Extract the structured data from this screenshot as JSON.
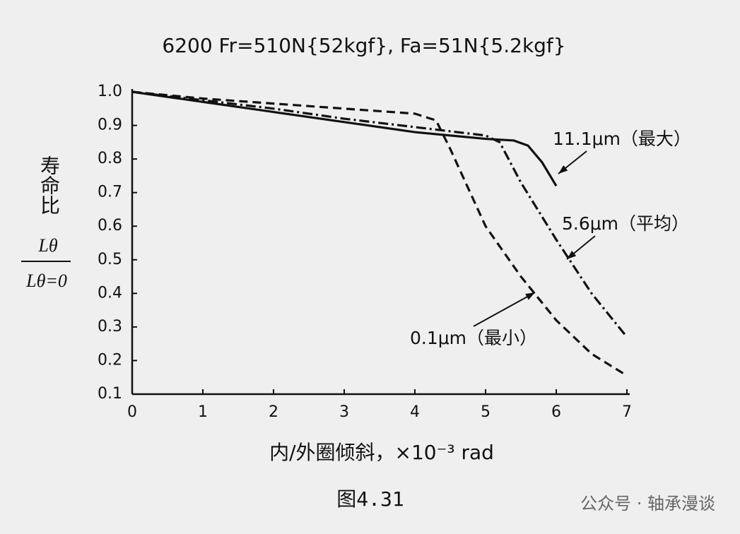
{
  "chart_data": {
    "type": "line",
    "title": "6200  Fr=510N{52kgf}, Fa=51N{5.2kgf}",
    "x_label": "内/外圈倾斜，×10⁻³ rad",
    "y_label": "寿命比",
    "y_label_fraction": {
      "numerator": "Lθ",
      "denominator": "Lθ=0"
    },
    "caption": "图4.31",
    "watermark": "公众号 · 轴承漫谈",
    "xlim": [
      0,
      7
    ],
    "xticks": [
      0,
      1,
      2,
      3,
      4,
      5,
      6,
      7
    ],
    "ylim": [
      0.1,
      1
    ],
    "yticks": [
      {
        "value": 1,
        "label": "1.0"
      },
      0.9,
      0.8,
      0.7,
      0.6,
      0.5,
      0.4,
      0.3,
      0.2,
      0.1
    ],
    "grid": false,
    "series": [
      {
        "name": "11.1μm（最大）",
        "color": "#111111",
        "dash": "solid",
        "x": [
          0,
          1,
          2,
          3,
          4,
          5,
          5.4,
          5.6,
          5.8,
          6
        ],
        "values": [
          1.0,
          0.97,
          0.94,
          0.91,
          0.88,
          0.86,
          0.855,
          0.84,
          0.79,
          0.72
        ]
      },
      {
        "name": "5.6μm（平均）",
        "color": "#111111",
        "dash": "dashdot",
        "x": [
          0,
          1,
          2,
          3,
          4,
          5,
          5.2,
          5.5,
          6,
          6.5,
          7
        ],
        "values": [
          1.0,
          0.975,
          0.95,
          0.92,
          0.895,
          0.87,
          0.85,
          0.73,
          0.56,
          0.4,
          0.27
        ]
      },
      {
        "name": "0.1μm（最小）",
        "color": "#111111",
        "dash": "dashed",
        "x": [
          0,
          1,
          2,
          3,
          4,
          4.3,
          4.5,
          5,
          5.5,
          6,
          6.5,
          7
        ],
        "values": [
          1.0,
          0.98,
          0.965,
          0.95,
          0.935,
          0.915,
          0.83,
          0.6,
          0.45,
          0.32,
          0.22,
          0.155
        ]
      }
    ]
  }
}
